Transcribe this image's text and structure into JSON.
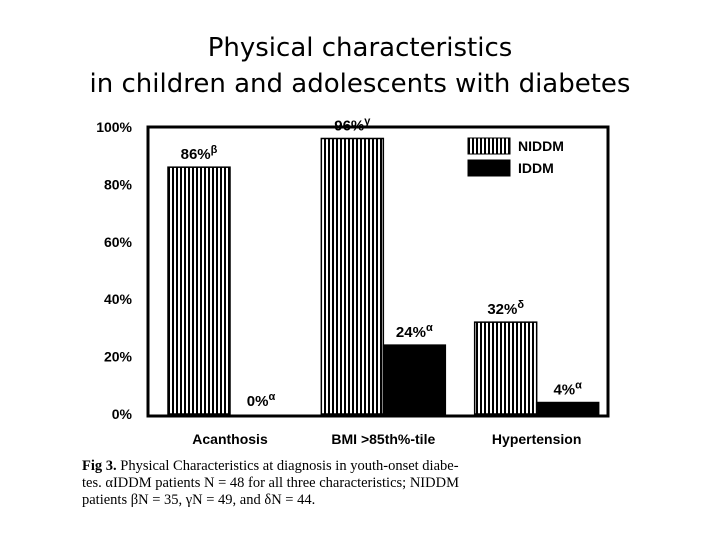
{
  "slide": {
    "title_line1": "Physical characteristics",
    "title_line2": "in children and adolescents with diabetes"
  },
  "caption": {
    "label": "Fig 3.",
    "line1": "Physical Characteristics at diagnosis in youth-onset diabe-",
    "line2": "tes. αIDDM patients N = 48 for all three characteristics; NIDDM",
    "line3": "patients βN = 35, γN = 49, and δN = 44."
  },
  "chart_data": {
    "type": "bar",
    "categories": [
      "Acanthosis",
      "BMI >85th%-tile",
      "Hypertension"
    ],
    "series": [
      {
        "name": "NIDDM",
        "values": [
          86,
          96,
          32
        ],
        "labels": [
          "86%β",
          "96%γ",
          "32%δ"
        ],
        "pattern": "vertical-stripes"
      },
      {
        "name": "IDDM",
        "values": [
          0,
          24,
          4
        ],
        "labels": [
          "0%α",
          "24%α",
          "4%α"
        ],
        "pattern": "solid"
      }
    ],
    "ylim": [
      0,
      100
    ],
    "yticks": [
      "0%",
      "20%",
      "40%",
      "60%",
      "80%",
      "100%"
    ],
    "legend_position": "top-right",
    "colors": {
      "bar_fill": "#000000",
      "background": "#ffffff"
    }
  }
}
